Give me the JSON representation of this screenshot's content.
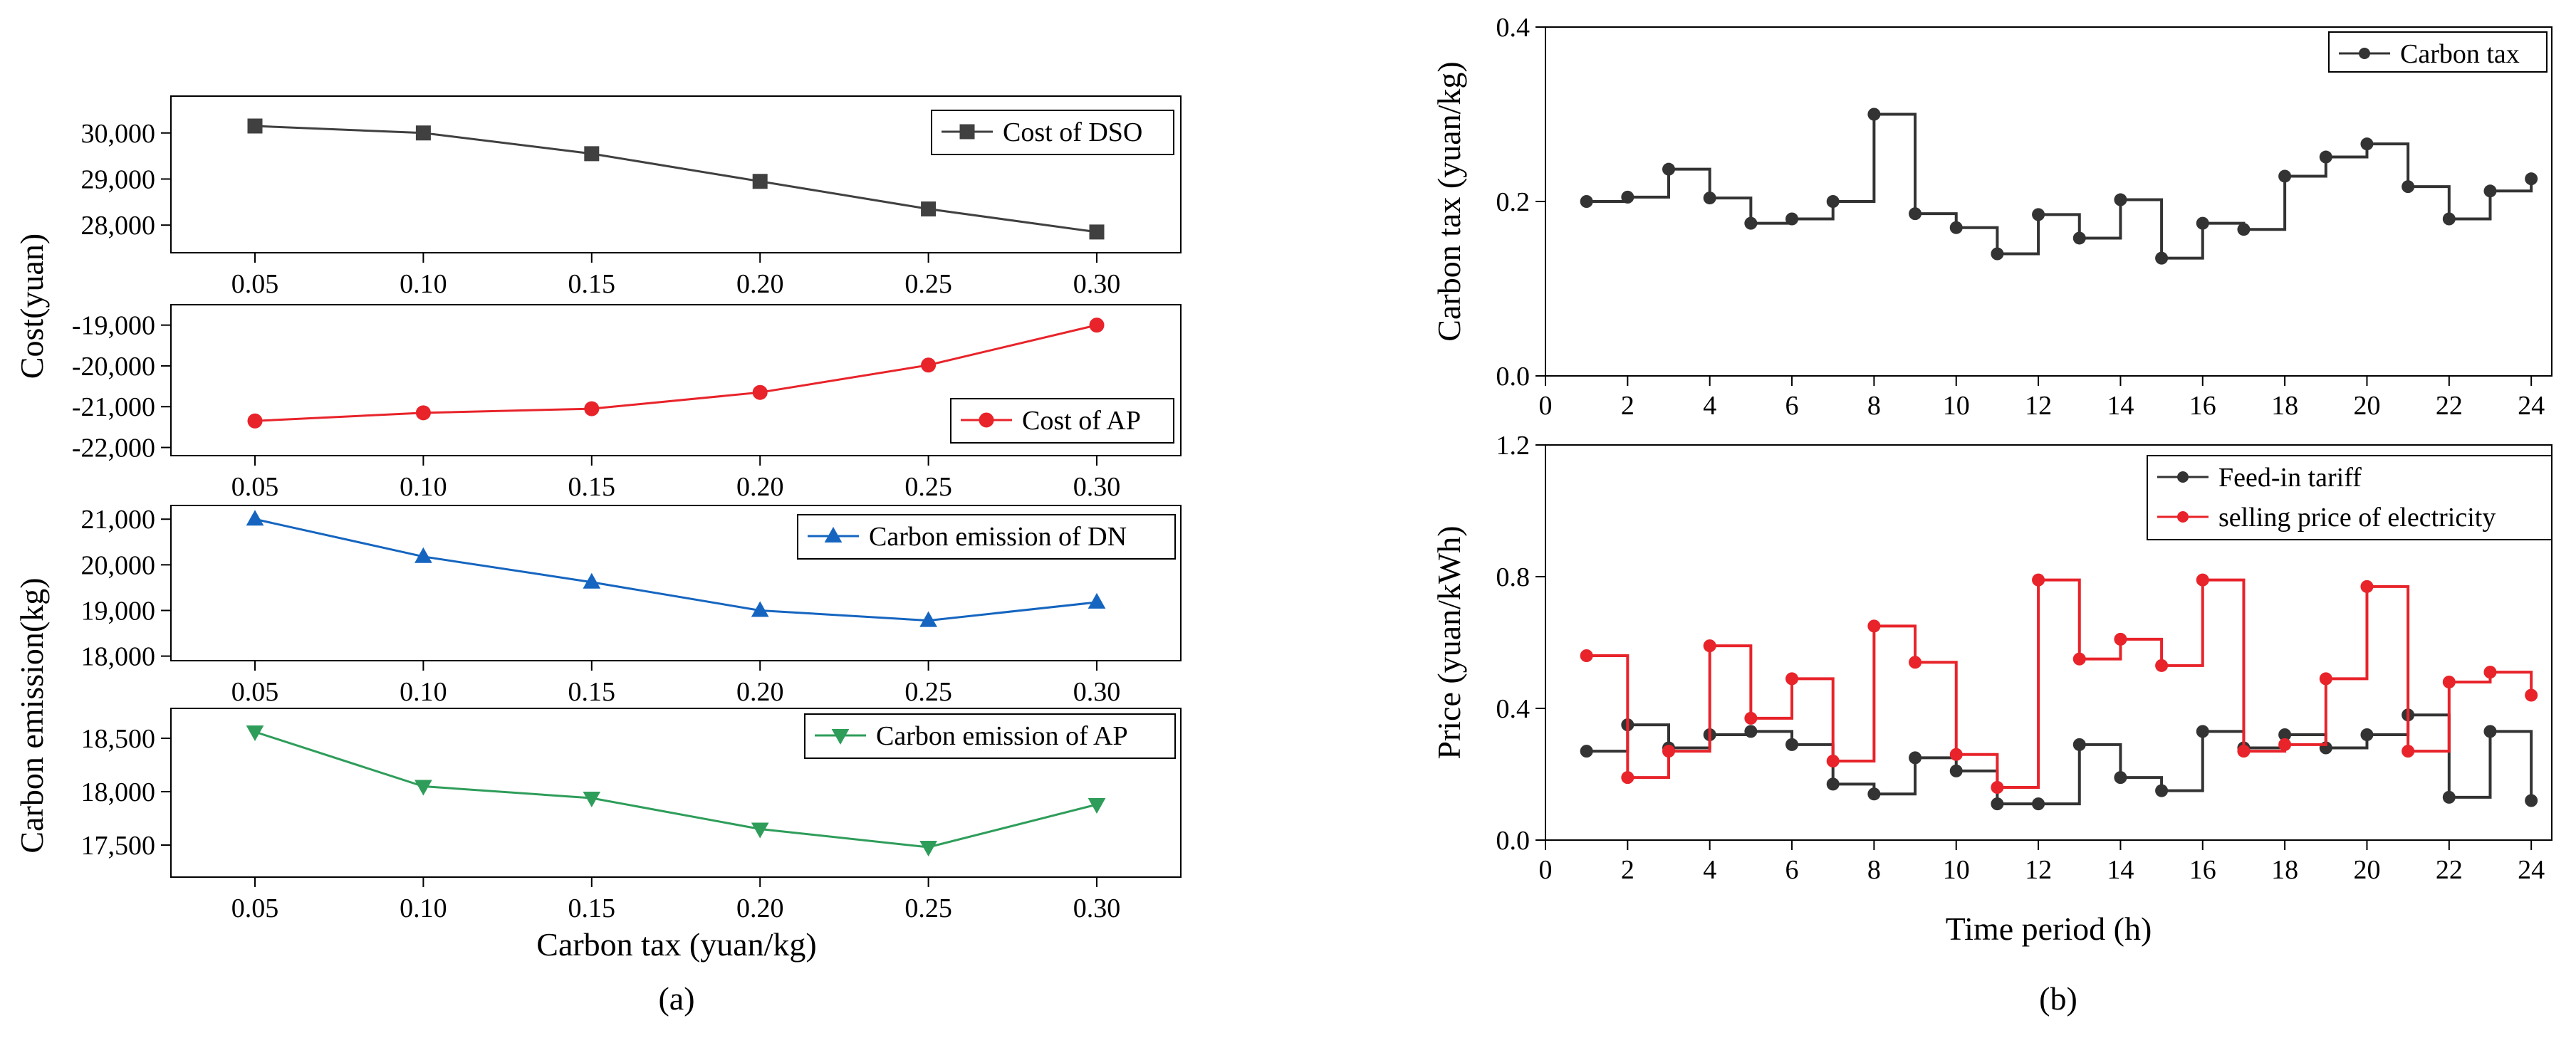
{
  "chart_data": [
    {
      "id": "a1",
      "type": "line",
      "group": "a",
      "x": [
        0.05,
        0.1,
        0.15,
        0.2,
        0.25,
        0.3
      ],
      "x_ticks": [
        "0.05",
        "0.10",
        "0.15",
        "0.20",
        "0.25",
        "0.30"
      ],
      "series": [
        {
          "name": "Cost of DSO",
          "values": [
            30150,
            30000,
            29550,
            28950,
            28350,
            27850
          ],
          "color": "#404040",
          "marker": "square"
        }
      ],
      "ylim": [
        27400,
        30800
      ],
      "y_ticks": [
        28000,
        29000,
        30000
      ],
      "y_tick_labels": [
        "28,000",
        "29,000",
        "30,000"
      ]
    },
    {
      "id": "a2",
      "type": "line",
      "group": "a",
      "x": [
        0.05,
        0.1,
        0.15,
        0.2,
        0.25,
        0.3
      ],
      "x_ticks": [
        "0.05",
        "0.10",
        "0.15",
        "0.20",
        "0.25",
        "0.30"
      ],
      "series": [
        {
          "name": "Cost of AP",
          "values": [
            -21350,
            -21150,
            -21050,
            -20650,
            -19980,
            -19000
          ],
          "color": "#e8232a",
          "marker": "circle"
        }
      ],
      "ylim": [
        -22200,
        -18500
      ],
      "y_ticks": [
        -22000,
        -21000,
        -20000,
        -19000
      ],
      "y_tick_labels": [
        "-22,000",
        "-21,000",
        "-20,000",
        "-19,000"
      ]
    },
    {
      "id": "a3",
      "type": "line",
      "group": "a",
      "x": [
        0.05,
        0.1,
        0.15,
        0.2,
        0.25,
        0.3
      ],
      "x_ticks": [
        "0.05",
        "0.10",
        "0.15",
        "0.20",
        "0.25",
        "0.30"
      ],
      "series": [
        {
          "name": "Carbon emission of DN",
          "values": [
            21000,
            20180,
            19620,
            19000,
            18780,
            19180
          ],
          "color": "#1565c0",
          "marker": "triangle-up"
        }
      ],
      "ylim": [
        17900,
        21300
      ],
      "y_ticks": [
        18000,
        19000,
        20000,
        21000
      ],
      "y_tick_labels": [
        "18,000",
        "19,000",
        "20,000",
        "21,000"
      ]
    },
    {
      "id": "a4",
      "type": "line",
      "group": "a",
      "x": [
        0.05,
        0.1,
        0.15,
        0.2,
        0.25,
        0.3
      ],
      "x_ticks": [
        "0.05",
        "0.10",
        "0.15",
        "0.20",
        "0.25",
        "0.30"
      ],
      "series": [
        {
          "name": "Carbon emission of AP",
          "values": [
            18560,
            18050,
            17940,
            17650,
            17480,
            17880
          ],
          "color": "#2e9d5a",
          "marker": "triangle-down"
        }
      ],
      "ylim": [
        17200,
        18780
      ],
      "y_ticks": [
        17500,
        18000,
        18500
      ],
      "y_tick_labels": [
        "17,500",
        "18,000",
        "18,500"
      ]
    },
    {
      "id": "b1",
      "type": "line",
      "group": "b",
      "step": true,
      "xlim": [
        0,
        24.5
      ],
      "x_ticks": [
        0,
        2,
        4,
        6,
        8,
        10,
        12,
        14,
        16,
        18,
        20,
        22,
        24
      ],
      "ylim": [
        0,
        0.4
      ],
      "y_ticks": [
        0.0,
        0.2,
        0.4
      ],
      "y_tick_labels": [
        "0.0",
        "0.2",
        "0.4"
      ],
      "ylabel": "Carbon tax (yuan/kg)",
      "series": [
        {
          "name": "Carbon tax",
          "color": "#333333",
          "x": [
            1,
            2,
            3,
            4,
            5,
            6,
            7,
            8,
            9,
            10,
            11,
            12,
            13,
            14,
            15,
            16,
            17,
            18,
            19,
            20,
            21,
            22,
            23,
            24
          ],
          "values": [
            0.2,
            0.205,
            0.237,
            0.204,
            0.175,
            0.18,
            0.2,
            0.3,
            0.186,
            0.17,
            0.14,
            0.185,
            0.158,
            0.202,
            0.135,
            0.175,
            0.168,
            0.229,
            0.251,
            0.266,
            0.217,
            0.18,
            0.212,
            0.226
          ]
        }
      ]
    },
    {
      "id": "b2",
      "type": "line",
      "group": "b",
      "step": true,
      "xlim": [
        0,
        24.5
      ],
      "x_ticks": [
        0,
        2,
        4,
        6,
        8,
        10,
        12,
        14,
        16,
        18,
        20,
        22,
        24
      ],
      "ylim": [
        0,
        1.2
      ],
      "y_ticks": [
        0.0,
        0.4,
        0.8,
        1.2
      ],
      "y_tick_labels": [
        "0.0",
        "0.4",
        "0.8",
        "1.2"
      ],
      "ylabel": "Price (yuan/kWh)",
      "xlabel": "Time period (h)",
      "series": [
        {
          "name": "Feed-in tariff",
          "color": "#333333",
          "x": [
            1,
            2,
            3,
            4,
            5,
            6,
            7,
            8,
            9,
            10,
            11,
            12,
            13,
            14,
            15,
            16,
            17,
            18,
            19,
            20,
            21,
            22,
            23,
            24
          ],
          "values": [
            0.27,
            0.35,
            0.28,
            0.32,
            0.33,
            0.29,
            0.17,
            0.14,
            0.25,
            0.21,
            0.11,
            0.11,
            0.29,
            0.19,
            0.15,
            0.33,
            0.28,
            0.32,
            0.28,
            0.32,
            0.38,
            0.13,
            0.33,
            0.12
          ]
        },
        {
          "name": "selling price of electricity",
          "color": "#e8232a",
          "x": [
            1,
            2,
            3,
            4,
            5,
            6,
            7,
            8,
            9,
            10,
            11,
            12,
            13,
            14,
            15,
            16,
            17,
            18,
            19,
            20,
            21,
            22,
            23,
            24
          ],
          "values": [
            0.56,
            0.19,
            0.27,
            0.59,
            0.37,
            0.49,
            0.24,
            0.65,
            0.54,
            0.26,
            0.16,
            0.79,
            0.55,
            0.61,
            0.53,
            0.79,
            0.27,
            0.29,
            0.49,
            0.77,
            0.27,
            0.48,
            0.51,
            0.44
          ]
        }
      ]
    }
  ],
  "labels": {
    "a_ylabel_cost": "Cost(yuan)",
    "a_ylabel_emission": "Carbon emission(kg)",
    "a_xlabel": "Carbon tax (yuan/kg)",
    "panel_a": "(a)",
    "panel_b": "(b)"
  }
}
